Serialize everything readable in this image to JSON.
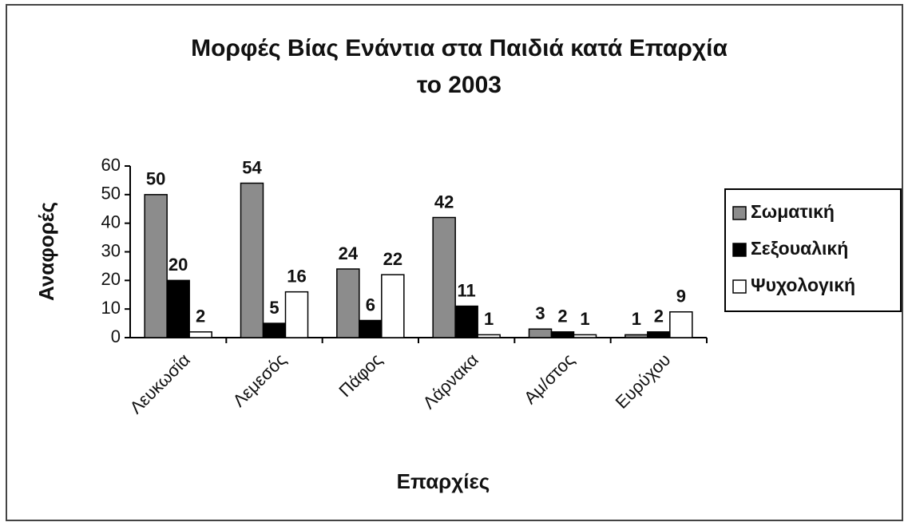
{
  "chart_data": {
    "type": "bar",
    "title": [
      "Μορφές Βίας Ενάντια στα Παιδιά κατά Επαρχία",
      "το 2003"
    ],
    "x_label": "Επαρχίες",
    "y_label": "Αναφορές",
    "categories": [
      "Λευκωσία",
      "Λεμεσός",
      "Πάφος",
      "Λάρνακα",
      "Αμ/στος",
      "Ευρύχου"
    ],
    "series": [
      {
        "name": "Σωματική",
        "color": "#8c8c8c",
        "values": [
          50,
          54,
          24,
          42,
          3,
          1
        ]
      },
      {
        "name": "Σεξουαλική",
        "color": "#000000",
        "values": [
          20,
          5,
          6,
          11,
          2,
          2
        ]
      },
      {
        "name": "Ψυχολογική",
        "color": "#ffffff",
        "values": [
          2,
          16,
          22,
          1,
          1,
          9
        ]
      }
    ],
    "ylim": [
      0,
      60
    ],
    "yticks": [
      0,
      10,
      20,
      30,
      40,
      50,
      60
    ],
    "grid": false,
    "legend": "right"
  }
}
